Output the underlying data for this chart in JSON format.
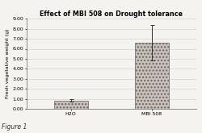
{
  "title": "Effect of MBI 508 on Drought tolerance",
  "categories": [
    "H2O",
    "MBI 508"
  ],
  "values": [
    0.85,
    6.6
  ],
  "errors": [
    0.12,
    1.8
  ],
  "bar_color": "#c8c0b8",
  "ylabel": "Fresh vegetative weight (g)",
  "ylim": [
    0,
    9.0
  ],
  "yticks": [
    0.0,
    1.0,
    2.0,
    3.0,
    4.0,
    5.0,
    6.0,
    7.0,
    8.0,
    9.0
  ],
  "figure_label": "Figure 1",
  "bg_color": "#f5f3f0",
  "plot_bg": "#f5f3f0",
  "grid_color": "#d8d4ce",
  "title_fontsize": 5.8,
  "label_fontsize": 4.5,
  "tick_fontsize": 4.5,
  "caption_fontsize": 5.5,
  "figsize": [
    2.5,
    1.65
  ],
  "dpi": 100
}
